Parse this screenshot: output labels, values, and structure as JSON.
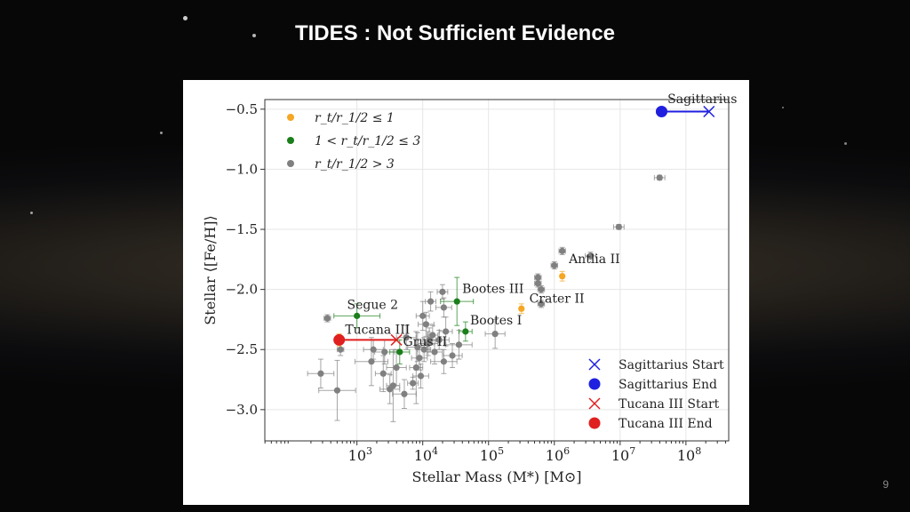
{
  "slide": {
    "title": "TIDES : Not Sufficient Evidence",
    "page_number": "9"
  },
  "colors": {
    "orange": "#f5a623",
    "green": "#1a7f1a",
    "gray": "#808080",
    "blue": "#1f1fe0",
    "red": "#e01f1f"
  },
  "chart_data": {
    "type": "scatter",
    "xlabel": "Stellar Mass (M*) [M⊙]",
    "ylabel": "Stellar ⟨[Fe/H]⟩",
    "xscale": "log",
    "xlim_log10": [
      1.6,
      8.65
    ],
    "ylim": [
      -3.26,
      -0.42
    ],
    "x_ticks": [
      {
        "v": 3,
        "label": "10",
        "exp": "3"
      },
      {
        "v": 4,
        "label": "10",
        "exp": "4"
      },
      {
        "v": 5,
        "label": "10",
        "exp": "5"
      },
      {
        "v": 6,
        "label": "10",
        "exp": "6"
      },
      {
        "v": 7,
        "label": "10",
        "exp": "7"
      },
      {
        "v": 8,
        "label": "10",
        "exp": "8"
      }
    ],
    "y_ticks": [
      {
        "v": -0.5,
        "label": "−0.5"
      },
      {
        "v": -1.0,
        "label": "−1.0"
      },
      {
        "v": -1.5,
        "label": "−1.5"
      },
      {
        "v": -2.0,
        "label": "−2.0"
      },
      {
        "v": -2.5,
        "label": "−2.5"
      },
      {
        "v": -3.0,
        "label": "−3.0"
      }
    ],
    "legend_top": [
      {
        "key": "orange",
        "label": "r_t/r_1/2 ≤ 1"
      },
      {
        "key": "green",
        "label": "1 < r_t/r_1/2 ≤ 3"
      },
      {
        "key": "gray",
        "label": "r_t/r_1/2 > 3"
      }
    ],
    "legend_bottom": [
      {
        "marker": "x",
        "key": "blue",
        "label": "Sagittarius Start"
      },
      {
        "marker": "o",
        "key": "blue",
        "label": "Sagittarius End"
      },
      {
        "marker": "x",
        "key": "red",
        "label": "Tucana III Start"
      },
      {
        "marker": "o",
        "key": "red",
        "label": "Tucana III End"
      }
    ],
    "points": [
      {
        "x": 2.55,
        "y": -2.24,
        "c": "gray",
        "xe": 0.05,
        "ye": 0.03
      },
      {
        "x": 2.45,
        "y": -2.7,
        "c": "gray",
        "xe": 0.2,
        "ye": 0.12
      },
      {
        "x": 2.7,
        "y": -2.84,
        "c": "gray",
        "xe": 0.28,
        "ye": 0.25
      },
      {
        "x": 2.75,
        "y": -2.5,
        "c": "gray",
        "xe": 0.05,
        "ye": 0.05
      },
      {
        "x": 3.25,
        "y": -2.5,
        "c": "gray",
        "xe": 0.15,
        "ye": 0.08
      },
      {
        "x": 3.22,
        "y": -2.6,
        "c": "gray",
        "xe": 0.25,
        "ye": 0.2
      },
      {
        "x": 3.42,
        "y": -2.52,
        "c": "gray",
        "xe": 0.15,
        "ye": 0.1
      },
      {
        "x": 3.4,
        "y": -2.7,
        "c": "gray",
        "xe": 0.12,
        "ye": 0.15
      },
      {
        "x": 3.5,
        "y": -2.83,
        "c": "gray",
        "xe": 0.15,
        "ye": 0.12
      },
      {
        "x": 3.55,
        "y": -2.8,
        "c": "gray",
        "xe": 0.1,
        "ye": 0.3
      },
      {
        "x": 3.6,
        "y": -2.65,
        "c": "gray",
        "xe": 0.15,
        "ye": 0.15
      },
      {
        "x": 3.72,
        "y": -2.87,
        "c": "gray",
        "xe": 0.18,
        "ye": 0.12
      },
      {
        "x": 3.75,
        "y": -2.4,
        "c": "gray",
        "xe": 0.15,
        "ye": 0.1
      },
      {
        "x": 3.85,
        "y": -2.78,
        "c": "gray",
        "xe": 0.08,
        "ye": 0.05
      },
      {
        "x": 3.92,
        "y": -2.48,
        "c": "gray",
        "xe": 0.15,
        "ye": 0.12
      },
      {
        "x": 3.95,
        "y": -2.57,
        "c": "gray",
        "xe": 0.12,
        "ye": 0.1
      },
      {
        "x": 3.9,
        "y": -2.65,
        "c": "gray",
        "xe": 0.1,
        "ye": 0.3
      },
      {
        "x": 3.97,
        "y": -2.72,
        "c": "gray",
        "xe": 0.12,
        "ye": 0.1
      },
      {
        "x": 4.02,
        "y": -2.5,
        "c": "gray",
        "xe": 0.1,
        "ye": 0.1
      },
      {
        "x": 4.0,
        "y": -2.22,
        "c": "gray",
        "xe": 0.1,
        "ye": 0.12
      },
      {
        "x": 4.05,
        "y": -2.29,
        "c": "gray",
        "xe": 0.12,
        "ye": 0.1
      },
      {
        "x": 4.08,
        "y": -2.45,
        "c": "gray",
        "xe": 0.15,
        "ye": 0.1
      },
      {
        "x": 4.1,
        "y": -2.42,
        "c": "gray",
        "xe": 0.1,
        "ye": 0.1
      },
      {
        "x": 4.12,
        "y": -2.1,
        "c": "gray",
        "xe": 0.08,
        "ye": 0.08
      },
      {
        "x": 4.15,
        "y": -2.38,
        "c": "gray",
        "xe": 0.08,
        "ye": 0.08
      },
      {
        "x": 4.18,
        "y": -2.52,
        "c": "gray",
        "xe": 0.12,
        "ye": 0.1
      },
      {
        "x": 4.25,
        "y": -2.42,
        "c": "gray",
        "xe": 0.15,
        "ye": 0.08
      },
      {
        "x": 4.32,
        "y": -2.6,
        "c": "gray",
        "xe": 0.2,
        "ye": 0.1
      },
      {
        "x": 4.3,
        "y": -2.02,
        "c": "gray",
        "xe": 0.08,
        "ye": 0.06
      },
      {
        "x": 4.32,
        "y": -2.15,
        "c": "gray",
        "xe": 0.12,
        "ye": 0.08
      },
      {
        "x": 4.35,
        "y": -2.35,
        "c": "gray",
        "xe": 0.1,
        "ye": 0.12
      },
      {
        "x": 4.45,
        "y": -2.55,
        "c": "gray",
        "xe": 0.15,
        "ye": 0.1
      },
      {
        "x": 4.55,
        "y": -2.46,
        "c": "gray",
        "xe": 0.2,
        "ye": 0.12
      },
      {
        "x": 5.1,
        "y": -2.37,
        "c": "gray",
        "xe": 0.15,
        "ye": 0.12
      },
      {
        "x": 5.75,
        "y": -1.9,
        "c": "gray",
        "xe": 0.05,
        "ye": 0.03
      },
      {
        "x": 5.75,
        "y": -1.95,
        "c": "gray",
        "xe": 0.05,
        "ye": 0.03
      },
      {
        "x": 5.8,
        "y": -2.0,
        "c": "gray",
        "xe": 0.05,
        "ye": 0.03
      },
      {
        "x": 5.8,
        "y": -2.12,
        "c": "gray",
        "xe": 0.05,
        "ye": 0.03
      },
      {
        "x": 6.0,
        "y": -1.8,
        "c": "gray",
        "xe": 0.05,
        "ye": 0.03
      },
      {
        "x": 6.12,
        "y": -1.68,
        "c": "gray",
        "xe": 0.05,
        "ye": 0.03
      },
      {
        "x": 6.55,
        "y": -1.72,
        "c": "gray",
        "xe": 0.08,
        "ye": 0.03
      },
      {
        "x": 6.98,
        "y": -1.48,
        "c": "gray",
        "xe": 0.08,
        "ye": 0.02
      },
      {
        "x": 7.6,
        "y": -1.07,
        "c": "gray",
        "xe": 0.08,
        "ye": 0.02
      },
      {
        "x": 3.0,
        "y": -2.22,
        "c": "green",
        "xe": 0.35,
        "ye": 0.1
      },
      {
        "x": 3.65,
        "y": -2.52,
        "c": "green",
        "xe": 0.15,
        "ye": 0.1
      },
      {
        "x": 4.52,
        "y": -2.1,
        "c": "green",
        "xe": 0.25,
        "ye": 0.2
      },
      {
        "x": 4.65,
        "y": -2.35,
        "c": "green",
        "xe": 0.1,
        "ye": 0.08
      },
      {
        "x": 5.5,
        "y": -2.16,
        "c": "orange",
        "xe": 0.03,
        "ye": 0.04
      },
      {
        "x": 6.12,
        "y": -1.89,
        "c": "orange",
        "xe": 0.03,
        "ye": 0.04
      },
      {
        "x": 2.73,
        "y": -2.42,
        "c": "orange",
        "xe": 0.05,
        "ye": 0.05
      },
      {
        "x": 7.63,
        "y": -0.52,
        "c": "orange",
        "xe": 0.08,
        "ye": 0.02
      }
    ],
    "tracks": [
      {
        "key": "blue",
        "start": [
          8.35,
          -0.52
        ],
        "end": [
          7.63,
          -0.52
        ]
      },
      {
        "key": "red",
        "start": [
          3.6,
          -2.42
        ],
        "end": [
          2.73,
          -2.42
        ]
      }
    ],
    "annotations": [
      {
        "text": "Sagittarius",
        "x": 7.72,
        "y": -0.45
      },
      {
        "text": "Antlia II",
        "x": 6.22,
        "y": -1.78
      },
      {
        "text": "Crater II",
        "x": 5.62,
        "y": -2.11
      },
      {
        "text": "Bootes III",
        "x": 4.6,
        "y": -2.03
      },
      {
        "text": "Bootes I",
        "x": 4.72,
        "y": -2.29
      },
      {
        "text": "Segue 2",
        "x": 2.85,
        "y": -2.16
      },
      {
        "text": "Tucana III",
        "x": 2.82,
        "y": -2.37
      },
      {
        "text": "Grus II",
        "x": 3.7,
        "y": -2.47
      }
    ]
  }
}
